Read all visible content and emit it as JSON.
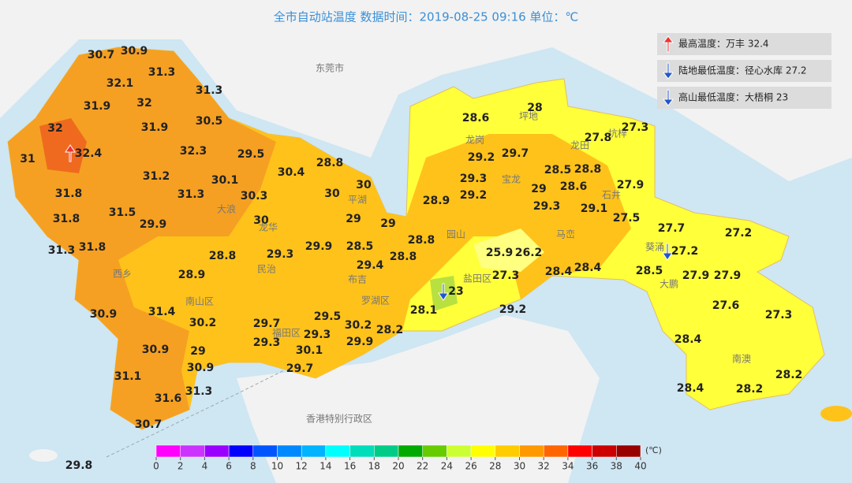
{
  "title": "全市自动站温度  数据时间：2019-08-25 09:16  单位：℃",
  "legend_items": [
    "最高温度：万丰 32.4",
    "陆地最低温度：径心水库 27.2",
    "高山最低温度：大梧桐 23"
  ],
  "place_names": [
    "东莞市",
    "香港特别行政区",
    "南山区",
    "福田区",
    "罗湖区",
    "盐田区",
    "龙岗",
    "坪地",
    "龙田",
    "坑梓",
    "宝龙",
    "园山",
    "马峦",
    "石井",
    "葵涌",
    "大鹏",
    "南澳",
    "西乡",
    "民治",
    "布吉",
    "平湖",
    "大浪",
    "龙华"
  ],
  "stations": [
    30.7,
    30.9,
    31.3,
    32.1,
    31.3,
    31.9,
    32,
    30.5,
    31.9,
    32,
    32.4,
    31,
    32.3,
    31.2,
    29.5,
    30.4,
    28.8,
    30.1,
    30.3,
    30,
    30,
    31.8,
    31.3,
    31.5,
    29.9,
    31.8,
    30,
    29,
    29,
    31.8,
    31.3,
    28.8,
    29.3,
    29.9,
    28.5,
    28.8,
    28.8,
    29.4,
    28.9,
    30.9,
    31.4,
    30.2,
    29.7,
    29.5,
    30.2,
    28.2,
    29.3,
    29.3,
    30.1,
    29.9,
    29,
    30.9,
    30.9,
    31.1,
    29.7,
    31.3,
    31.6,
    30.7,
    29.8,
    28.6,
    28,
    27.3,
    27.8,
    29.2,
    29.7,
    28.5,
    28.8,
    29.3,
    29.2,
    29,
    28.6,
    27.9,
    28.9,
    29.3,
    29.1,
    27.5,
    27.7,
    27.2,
    27.2,
    25.9,
    26.2,
    27.3,
    28.4,
    28.4,
    28.5,
    27.9,
    27.9,
    23,
    28.1,
    29.2,
    27.6,
    27.3,
    28.4,
    28.2,
    28.4,
    28.2
  ],
  "color_scale": {
    "unit": "(℃)",
    "ticks": [
      0,
      2,
      4,
      6,
      8,
      10,
      12,
      14,
      16,
      18,
      20,
      22,
      24,
      26,
      28,
      30,
      32,
      34,
      36,
      38,
      40
    ],
    "colors": [
      "#ff00ff",
      "#cc33ff",
      "#9900ff",
      "#0000ff",
      "#0055ff",
      "#0088ff",
      "#00b4ff",
      "#00ffff",
      "#00ddbb",
      "#00cc88",
      "#00aa00",
      "#66cc00",
      "#ccff33",
      "#ffff00",
      "#ffcc00",
      "#ff9900",
      "#ff6600",
      "#ff0000",
      "#cc0000",
      "#990000"
    ]
  }
}
